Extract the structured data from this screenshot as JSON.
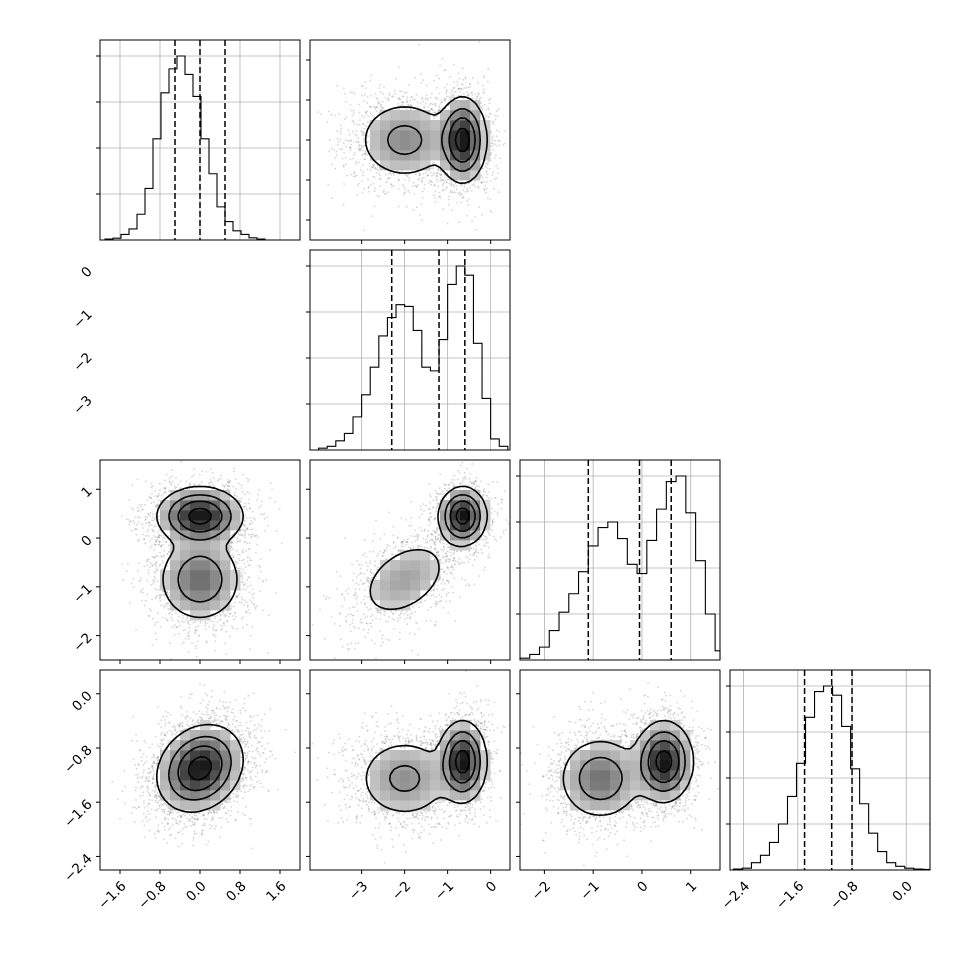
{
  "chart_data": {
    "type": "corner",
    "grid": true,
    "colors": {
      "line": "#000000",
      "scatter": "#8a8a8a",
      "grid": "#b0b0b0"
    },
    "parameters": [
      {
        "range": [
          -2.0,
          2.0
        ],
        "ticks": [
          -1.6,
          -0.8,
          0.0,
          0.8,
          1.6
        ],
        "tick_labels": [
          "−1.6",
          "−0.8",
          "0.0",
          "0.8",
          "1.6"
        ]
      },
      {
        "range": [
          -4.2,
          0.45
        ],
        "ticks": [
          -3,
          -2,
          -1,
          0
        ],
        "tick_labels": [
          "−3",
          "−2",
          "−1",
          "0"
        ]
      },
      {
        "range": [
          -2.5,
          1.6
        ],
        "ticks": [
          -2,
          -1,
          0,
          1
        ],
        "tick_labels": [
          "−2",
          "−1",
          "0",
          "1"
        ]
      },
      {
        "range": [
          -2.6,
          0.35
        ],
        "ticks": [
          -2.4,
          -1.6,
          -0.8,
          0.0
        ],
        "tick_labels": [
          "−2.4",
          "−1.6",
          "−0.8",
          "0.0"
        ]
      }
    ],
    "marginal_histograms": [
      {
        "param": 0,
        "quantiles": [
          -0.5,
          0.0,
          0.5
        ],
        "bins_start": -1.9,
        "bin_width": 0.16,
        "counts": [
          0.005,
          0.01,
          0.03,
          0.06,
          0.14,
          0.28,
          0.55,
          0.8,
          0.93,
          1.0,
          0.9,
          0.78,
          0.55,
          0.36,
          0.18,
          0.1,
          0.05,
          0.03,
          0.012,
          0.005
        ]
      },
      {
        "param": 1,
        "quantiles": [
          -2.3,
          -1.2,
          -0.6
        ],
        "bins_start": -4.2,
        "bin_width": 0.2,
        "counts": [
          0.0,
          0.01,
          0.02,
          0.05,
          0.09,
          0.18,
          0.3,
          0.45,
          0.62,
          0.72,
          0.79,
          0.78,
          0.65,
          0.45,
          0.43,
          0.6,
          0.9,
          1.0,
          0.95,
          0.58,
          0.28,
          0.06,
          0.02
        ]
      },
      {
        "param": 2,
        "quantiles": [
          -1.1,
          -0.05,
          0.6
        ],
        "bins_start": -2.5,
        "bin_width": 0.2,
        "counts": [
          0.01,
          0.03,
          0.07,
          0.16,
          0.26,
          0.36,
          0.48,
          0.62,
          0.72,
          0.75,
          0.66,
          0.52,
          0.47,
          0.65,
          0.82,
          0.97,
          1.0,
          0.8,
          0.54,
          0.25,
          0.05
        ]
      },
      {
        "param": 3,
        "quantiles": [
          -1.5,
          -1.1,
          -0.8
        ],
        "bins_start": -2.55,
        "bin_width": 0.133,
        "counts": [
          0.005,
          0.01,
          0.04,
          0.08,
          0.15,
          0.25,
          0.4,
          0.58,
          0.83,
          0.97,
          1.0,
          0.95,
          0.78,
          0.55,
          0.36,
          0.2,
          0.1,
          0.04,
          0.02,
          0.01,
          0.005,
          0.003
        ]
      }
    ],
    "joint_components": [
      {
        "x": 1,
        "y": 0,
        "modes": [
          {
            "mx": -0.65,
            "my": 0.0,
            "sx": 0.26,
            "sy": 0.4,
            "rho": 0.0,
            "w": 0.55
          },
          {
            "mx": -2.0,
            "my": 0.0,
            "sx": 0.55,
            "sy": 0.4,
            "rho": 0.0,
            "w": 0.45
          }
        ]
      },
      {
        "x": 0,
        "y": 2,
        "modes": [
          {
            "mx": 0.0,
            "my": 0.45,
            "sx": 0.4,
            "sy": 0.28,
            "rho": 0.0,
            "w": 0.55
          },
          {
            "mx": 0.0,
            "my": -0.85,
            "sx": 0.4,
            "sy": 0.42,
            "rho": 0.0,
            "w": 0.45
          }
        ]
      },
      {
        "x": 1,
        "y": 2,
        "modes": [
          {
            "mx": -0.65,
            "my": 0.45,
            "sx": 0.26,
            "sy": 0.28,
            "rho": 0.0,
            "w": 0.55
          },
          {
            "mx": -2.0,
            "my": -0.85,
            "sx": 0.55,
            "sy": 0.42,
            "rho": 0.4,
            "w": 0.45
          }
        ]
      },
      {
        "x": 0,
        "y": 3,
        "modes": [
          {
            "mx": 0.0,
            "my": -1.1,
            "sx": 0.4,
            "sy": 0.3,
            "rho": 0.2,
            "w": 1.0
          }
        ]
      },
      {
        "x": 1,
        "y": 3,
        "modes": [
          {
            "mx": -0.65,
            "my": -1.0,
            "sx": 0.26,
            "sy": 0.28,
            "rho": 0.0,
            "w": 0.55
          },
          {
            "mx": -2.0,
            "my": -1.25,
            "sx": 0.55,
            "sy": 0.3,
            "rho": 0.0,
            "w": 0.45
          }
        ]
      },
      {
        "x": 2,
        "y": 3,
        "modes": [
          {
            "mx": 0.45,
            "my": -1.0,
            "sx": 0.28,
            "sy": 0.28,
            "rho": 0.0,
            "w": 0.55
          },
          {
            "mx": -0.85,
            "my": -1.25,
            "sx": 0.42,
            "sy": 0.3,
            "rho": 0.0,
            "w": 0.45
          }
        ]
      }
    ]
  }
}
